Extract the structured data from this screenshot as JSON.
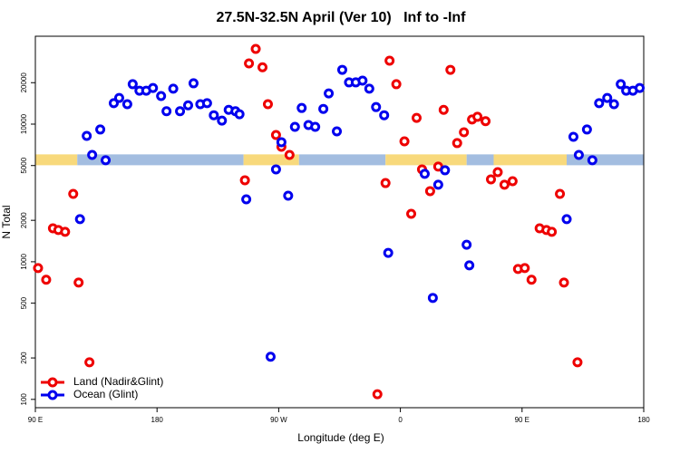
{
  "chart_data": {
    "type": "scatter",
    "title": "27.5N-32.5N April (Ver 10)   Inf to -Inf",
    "x_label": "Longitude (deg E)",
    "y_label": "N Total",
    "log_y": true,
    "xlim": [
      -270,
      180
    ],
    "xticks": [
      {
        "value": -270,
        "label": "90 E"
      },
      {
        "value": -180,
        "label": "180"
      },
      {
        "value": -90,
        "label": "90 W"
      },
      0,
      {
        "value": 90,
        "label": "90 E"
      },
      {
        "value": 180,
        "label": "180"
      }
    ],
    "ylim": [
      87,
      43500
    ],
    "yticks": [
      100,
      200,
      500,
      1000,
      2000,
      5000,
      10000,
      20000
    ],
    "legend": "bottom-left",
    "band": {
      "y": 5500,
      "segments": [
        {
          "start": -270,
          "end": -239,
          "color": "#f8d97c"
        },
        {
          "start": -239,
          "end": -116,
          "color": "#a3bde0"
        },
        {
          "start": -116,
          "end": -75,
          "color": "#f8d97c"
        },
        {
          "start": -75,
          "end": -11,
          "color": "#a3bde0"
        },
        {
          "start": -11,
          "end": 49,
          "color": "#f8d97c"
        },
        {
          "start": 49,
          "end": 69,
          "color": "#a3bde0"
        },
        {
          "start": 69,
          "end": 123,
          "color": "#f8d97c"
        },
        {
          "start": 123,
          "end": 180,
          "color": "#a3bde0"
        }
      ]
    },
    "series": [
      {
        "name": "Land (Nadir&Glint)",
        "color": "#ee0000",
        "x": [
          -268,
          -262,
          -257,
          -253,
          -248,
          -242,
          -238,
          -230,
          -115,
          -112,
          -102,
          -98,
          -107,
          -92,
          -88,
          -82,
          -11,
          -8,
          -17,
          -3,
          3,
          8,
          12,
          16,
          22,
          28,
          32,
          37,
          42,
          47,
          53,
          57,
          63,
          67,
          72,
          77,
          83,
          87,
          92,
          97,
          103,
          108,
          112,
          118,
          121,
          131
        ],
        "values": [
          900,
          740,
          1750,
          1700,
          1650,
          3110,
          706,
          186,
          3910,
          27600,
          25900,
          13960,
          35200,
          8340,
          6850,
          5970,
          3730,
          28900,
          109,
          19500,
          7500,
          2230,
          11100,
          4690,
          3260,
          4910,
          12700,
          24800,
          7280,
          8730,
          10800,
          11300,
          10500,
          3970,
          4480,
          3630,
          3850,
          886,
          900,
          740,
          1750,
          1700,
          1650,
          3110,
          706,
          186
        ]
      },
      {
        "name": "Ocean (Glint)",
        "color": "#0000ee",
        "x": [
          -237,
          -232,
          -228,
          -222,
          -218,
          -212,
          -208,
          -202,
          -198,
          -193,
          -188,
          -183,
          -177,
          -173,
          -168,
          -163,
          -157,
          -153,
          -148,
          -143,
          -138,
          -132,
          -127,
          -122,
          -119,
          -114,
          -96,
          -92,
          -88,
          -83,
          -78,
          -73,
          -68,
          -63,
          -57,
          -53,
          -47,
          -43,
          -38,
          -33,
          -28,
          -23,
          -18,
          -12,
          -9,
          18,
          24,
          28,
          33,
          49,
          51,
          123,
          128,
          132,
          138,
          142,
          147,
          153,
          158,
          163,
          167,
          172,
          177
        ],
        "values": [
          2040,
          8210,
          5970,
          9140,
          5460,
          14200,
          15500,
          13960,
          19500,
          17500,
          17500,
          18300,
          16000,
          12400,
          18100,
          12400,
          13700,
          19800,
          13960,
          14200,
          11600,
          10600,
          12700,
          12400,
          11800,
          2840,
          204,
          4690,
          7390,
          3020,
          9550,
          13100,
          9850,
          9550,
          12900,
          16700,
          8860,
          24800,
          20100,
          20100,
          20700,
          18100,
          13300,
          11600,
          1160,
          4350,
          546,
          3630,
          4620,
          1330,
          942,
          2040,
          8090,
          5970,
          9140,
          5460,
          14200,
          15500,
          13960,
          19500,
          17500,
          17500,
          18300
        ]
      }
    ]
  }
}
